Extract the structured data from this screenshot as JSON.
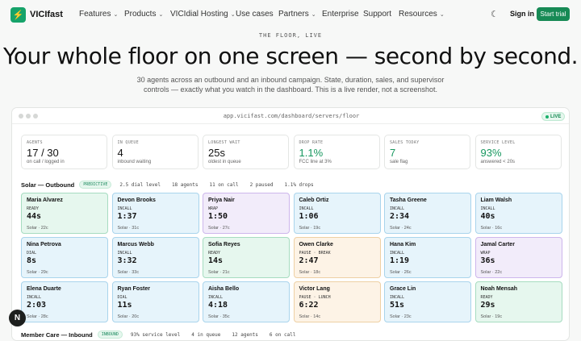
{
  "nav": {
    "brand": "VICIfast",
    "logo_glyph": "⚡",
    "items": [
      {
        "label": "Features",
        "dropdown": true
      },
      {
        "label": "Products",
        "dropdown": true
      },
      {
        "label": "VICIdial Hosting",
        "dropdown": true
      },
      {
        "label": "Use cases",
        "dropdown": false
      },
      {
        "label": "Partners",
        "dropdown": true
      },
      {
        "label": "Enterprise",
        "dropdown": false
      },
      {
        "label": "Support",
        "dropdown": false
      },
      {
        "label": "Resources",
        "dropdown": true
      }
    ],
    "theme_icon": "moon-icon",
    "sign_in": "Sign in",
    "start_trial": "Start trial",
    "accent": "#178a55"
  },
  "hero": {
    "eyebrow": "THE FLOOR, LIVE",
    "title": "Your whole floor on one screen — second by second.",
    "subtitle": "30 agents across an outbound and an inbound campaign. State, duration, sales, and supervisor controls — exactly what you watch in the dashboard. This is a live render, not a screenshot."
  },
  "window": {
    "url": "app.vicifast.com/dashboard/servers/floor",
    "live_label": "LIVE"
  },
  "stats": [
    {
      "label": "AGENTS",
      "value": "17 / 30",
      "note": "on call / logged in",
      "green": false
    },
    {
      "label": "IN QUEUE",
      "value": "4",
      "note": "inbound waiting",
      "green": false
    },
    {
      "label": "LONGEST WAIT",
      "value": "25s",
      "note": "oldest in queue",
      "green": false
    },
    {
      "label": "DROP RATE",
      "value": "1.1%",
      "note": "FCC line at 3%",
      "green": true
    },
    {
      "label": "SALES TODAY",
      "value": "7",
      "note": "sale flag",
      "green": true
    },
    {
      "label": "SERVICE LEVEL",
      "value": "93%",
      "note": "answered < 20s",
      "green": true
    }
  ],
  "outbound": {
    "name": "Solar — Outbound",
    "badge": "PREDICTIVE",
    "meta": [
      "2.5 dial level",
      "18 agents",
      "11 on call",
      "2 paused",
      "1.1% drops"
    ],
    "agents": [
      {
        "name": "Maria Alvarez",
        "state": "READY",
        "kind": "ready",
        "duration": "44s",
        "campaign": "Solar · 22c"
      },
      {
        "name": "Devon Brooks",
        "state": "INCALL",
        "kind": "incall",
        "duration": "1:37",
        "campaign": "Solar · 31c"
      },
      {
        "name": "Priya Nair",
        "state": "WRAP",
        "kind": "wrap",
        "duration": "1:50",
        "campaign": "Solar · 27c"
      },
      {
        "name": "Caleb Ortiz",
        "state": "INCALL",
        "kind": "incall",
        "duration": "1:06",
        "campaign": "Solar · 19c"
      },
      {
        "name": "Tasha Greene",
        "state": "INCALL",
        "kind": "incall",
        "duration": "2:34",
        "campaign": "Solar · 24c"
      },
      {
        "name": "Liam Walsh",
        "state": "INCALL",
        "kind": "incall",
        "duration": "40s",
        "campaign": "Solar · 16c"
      },
      {
        "name": "Nina Petrova",
        "state": "DIAL",
        "kind": "dial",
        "duration": "8s",
        "campaign": "Solar · 29c"
      },
      {
        "name": "Marcus Webb",
        "state": "INCALL",
        "kind": "incall",
        "duration": "3:32",
        "campaign": "Solar · 33c"
      },
      {
        "name": "Sofia Reyes",
        "state": "READY",
        "kind": "ready",
        "duration": "14s",
        "campaign": "Solar · 21c"
      },
      {
        "name": "Owen Clarke",
        "state": "PAUSE · BREAK",
        "kind": "pause",
        "duration": "2:47",
        "campaign": "Solar · 18c"
      },
      {
        "name": "Hana Kim",
        "state": "INCALL",
        "kind": "incall",
        "duration": "1:19",
        "campaign": "Solar · 26c"
      },
      {
        "name": "Jamal Carter",
        "state": "WRAP",
        "kind": "wrap",
        "duration": "36s",
        "campaign": "Solar · 22c"
      },
      {
        "name": "Elena Duarte",
        "state": "INCALL",
        "kind": "incall",
        "duration": "2:03",
        "campaign": "Solar · 28c"
      },
      {
        "name": "Ryan Foster",
        "state": "DIAL",
        "kind": "dial",
        "duration": "11s",
        "campaign": "Solar · 20c"
      },
      {
        "name": "Aisha Bello",
        "state": "INCALL",
        "kind": "incall",
        "duration": "4:18",
        "campaign": "Solar · 35c"
      },
      {
        "name": "Victor Lang",
        "state": "PAUSE · LUNCH",
        "kind": "pause",
        "duration": "6:22",
        "campaign": "Solar · 14c"
      },
      {
        "name": "Grace Lin",
        "state": "INCALL",
        "kind": "incall",
        "duration": "51s",
        "campaign": "Solar · 23c"
      },
      {
        "name": "Noah Mensah",
        "state": "READY",
        "kind": "ready",
        "duration": "29s",
        "campaign": "Solar · 19c"
      }
    ]
  },
  "inbound": {
    "name": "Member Care — Inbound",
    "badge": "INBOUND",
    "meta": [
      "93% service level",
      "4 in queue",
      "12 agents",
      "6 on call"
    ]
  },
  "fab_label": "N"
}
